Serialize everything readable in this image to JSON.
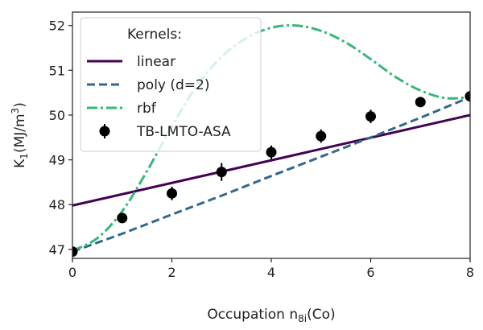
{
  "chart_data": {
    "type": "line",
    "title": "",
    "xlabel": "Occupation n",
    "xlabel_sub": "8i",
    "xlabel_tail": "(Co)",
    "ylabel": "K",
    "ylabel_sub": "1",
    "ylabel_tail": "(MJ/m",
    "ylabel_sup": "3",
    "ylabel_end": ")",
    "xlim": [
      0,
      8
    ],
    "ylim": [
      46.8,
      52.3
    ],
    "xticks": [
      0,
      2,
      4,
      6,
      8
    ],
    "yticks": [
      47,
      48,
      49,
      50,
      51,
      52
    ],
    "legend": {
      "title": "Kernels:",
      "placement": "top-left"
    },
    "series": [
      {
        "name": "linear",
        "style": "solid",
        "color": "#440154",
        "x": [
          0,
          8
        ],
        "y": [
          47.98,
          50.0
        ]
      },
      {
        "name": "poly (d=2)",
        "style": "dashed",
        "color": "#31688e",
        "x": [
          0,
          1,
          2,
          3,
          4,
          5,
          6,
          7,
          8
        ],
        "y": [
          46.95,
          47.35,
          47.78,
          48.2,
          48.64,
          49.07,
          49.5,
          49.94,
          50.4
        ]
      },
      {
        "name": "rbf",
        "style": "dashdot",
        "color": "#35b779",
        "x": [
          0,
          0.5,
          1,
          1.5,
          2,
          2.5,
          3,
          3.5,
          4,
          4.5,
          5,
          5.5,
          6,
          6.5,
          7,
          7.5,
          8
        ],
        "y": [
          46.97,
          47.25,
          47.85,
          48.75,
          49.75,
          50.65,
          51.3,
          51.72,
          51.95,
          52.0,
          51.88,
          51.62,
          51.25,
          50.85,
          50.55,
          50.38,
          50.4
        ]
      },
      {
        "name": "TB-LMTO-ASA",
        "style": "markers",
        "color": "#000000",
        "x": [
          0,
          1,
          2,
          3,
          4,
          5,
          6,
          7,
          8
        ],
        "y": [
          46.95,
          47.7,
          48.25,
          48.73,
          49.17,
          49.53,
          49.97,
          50.29,
          50.42
        ],
        "yerr": [
          0.1,
          0.1,
          0.15,
          0.2,
          0.15,
          0.15,
          0.15,
          0.1,
          0.1
        ]
      }
    ]
  }
}
